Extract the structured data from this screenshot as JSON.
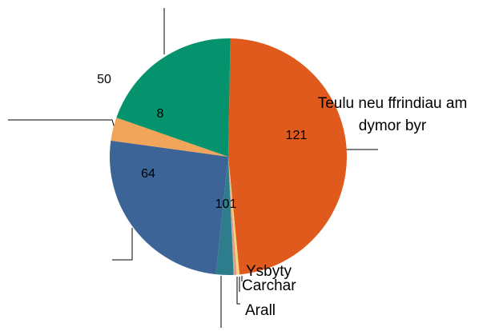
{
  "chart_data": {
    "type": "pie",
    "categories": [
      "Teulu neu ffrindiau am dymor byr",
      "Ysbyty",
      "Carchar",
      "Arall",
      null,
      null,
      null,
      null
    ],
    "values": [
      121,
      1,
      0.5,
      0.5,
      6,
      64,
      8,
      50
    ],
    "colors": [
      "#e05a1e",
      "#f2d57e",
      "#e88a8a",
      "#c9b08a",
      "#2e7d8c",
      "#3c6496",
      "#f0a55a",
      "#05936e"
    ],
    "annotations": [
      "101"
    ]
  }
}
